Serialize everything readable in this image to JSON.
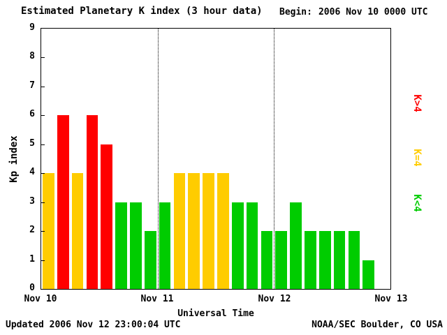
{
  "header": {
    "title": "Estimated Planetary K index (3 hour data)",
    "begin_label": "Begin:",
    "begin_value": "2006 Nov 10 0000 UTC"
  },
  "footer": {
    "updated": "Updated 2006 Nov 12 23:00:04 UTC",
    "attribution": "NOAA/SEC Boulder, CO USA"
  },
  "chart_data": {
    "type": "bar",
    "title": "Estimated Planetary K index (3 hour data)",
    "xlabel": "Universal Time",
    "ylabel": "Kp index",
    "ylim": [
      0,
      9
    ],
    "x_ticks": [
      "Nov 10",
      "Nov 11",
      "Nov 12",
      "Nov 13"
    ],
    "hours_per_bar": 3,
    "slots_total": 24,
    "values": [
      4,
      6,
      4,
      6,
      5,
      3,
      3,
      2,
      3,
      4,
      4,
      4,
      4,
      3,
      3,
      2,
      2,
      3,
      2,
      2,
      2,
      2,
      1
    ],
    "color_rule": {
      "k_gt_4": "#ff0000",
      "k_eq_4": "#ffcc00",
      "k_lt_4": "#00cc00"
    },
    "legend": [
      {
        "label": "K>4",
        "color": "#ff0000"
      },
      {
        "label": "K=4",
        "color": "#ffcc00"
      },
      {
        "label": "K<4",
        "color": "#00cc00"
      }
    ],
    "grid": "dotted vertical lines at day boundaries",
    "legend_position": "right, rotated"
  }
}
